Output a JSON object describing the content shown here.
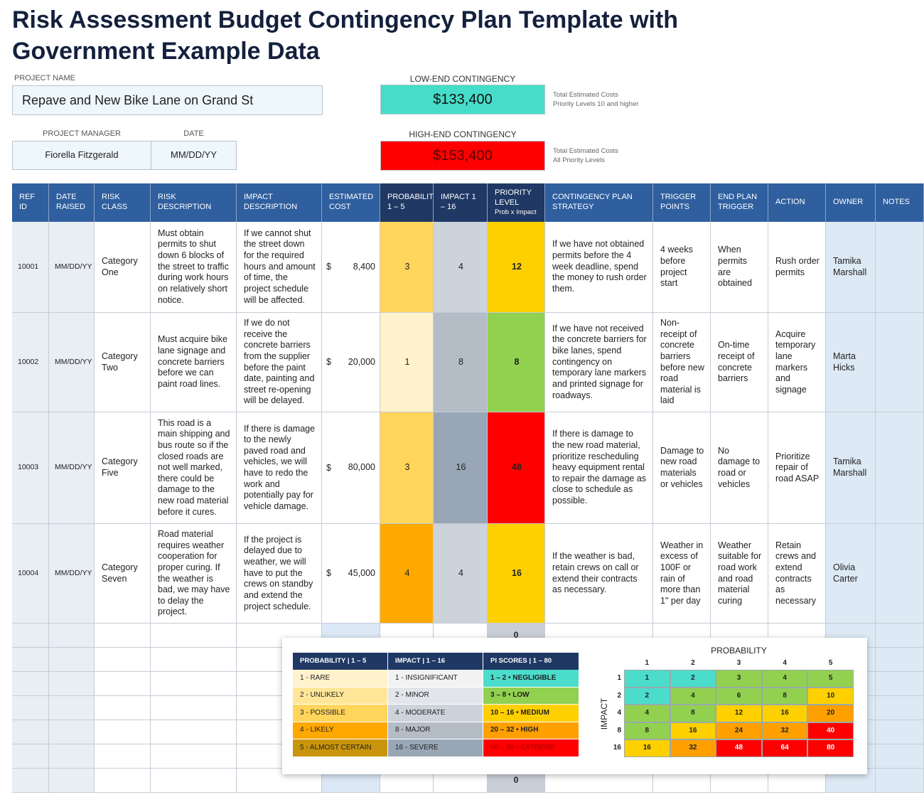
{
  "title": "Risk Assessment Budget Contingency Plan Template with Government Example Data",
  "project": {
    "name_label": "PROJECT NAME",
    "name": "Repave and New Bike Lane on Grand St",
    "manager_label": "PROJECT MANAGER",
    "manager": "Fiorella Fitzgerald",
    "date_label": "DATE",
    "date": "MM/DD/YY"
  },
  "contingency": {
    "low": {
      "label": "LOW-END CONTINGENCY",
      "value": "$133,400",
      "note": [
        "Total Estimated Costs",
        "Priority Levels 10 and higher"
      ],
      "color": "#45ddc9"
    },
    "high": {
      "label": "HIGH-END CONTINGENCY",
      "value": "$153,400",
      "note": [
        "Total Estimated Costs",
        "All Priority Levels"
      ],
      "color": "#ff0000"
    }
  },
  "table": {
    "headers": [
      "REF ID",
      "DATE RAISED",
      "RISK CLASS",
      "RISK DESCRIPTION",
      "IMPACT DESCRIPTION",
      "ESTIMATED COST",
      "PROBABILITY 1 – 5",
      "IMPACT 1 – 16",
      "PRIORITY LEVEL",
      "CONTINGENCY PLAN STRATEGY",
      "TRIGGER POINTS",
      "END PLAN TRIGGER",
      "ACTION",
      "OWNER",
      "NOTES"
    ],
    "priority_header_note": "Prob x Impact",
    "currency": "$",
    "rows": [
      [
        "10001",
        "MM/DD/YY",
        "Category One",
        "Must obtain permits to shut down 6 blocks of the street to traffic during work hours on relatively short notice.",
        "If we cannot shut the street down for the required hours and amount of time, the project schedule will be affected.",
        "8,400",
        3,
        4,
        12,
        "If we have not obtained permits before the 4 week deadline, spend the money to rush order them.",
        "4 weeks before project start",
        "When permits are obtained",
        "Rush order permits",
        "Tamika Marshall"
      ],
      [
        "10002",
        "MM/DD/YY",
        "Category Two",
        "Must acquire bike lane signage and concrete barriers before we can paint road lines.",
        "If we do not receive the concrete barriers from the supplier before the paint date, painting and street re-opening will be delayed.",
        "20,000",
        1,
        8,
        8,
        "If we have not received the concrete barriers for bike lanes, spend contingency on temporary lane markers and printed signage for roadways.",
        "Non-receipt of concrete barriers before new road material is laid",
        "On-time receipt of concrete barriers",
        "Acquire temporary lane markers and signage",
        "Marta Hicks"
      ],
      [
        "10003",
        "MM/DD/YY",
        "Category Five",
        "This road is a main shipping and bus route so if the closed roads are not well marked, there could be damage to the new road material before it cures.",
        "If there is damage to the newly paved road and vehicles, we will have to redo the work and potentially pay for vehicle damage.",
        "80,000",
        3,
        16,
        48,
        "If there is damage to the new road material, prioritize rescheduling heavy equipment rental to repair the damage as close to schedule as possible.",
        "Damage to new road materials or vehicles",
        "No damage to road or vehicles",
        "Prioritize repair of road ASAP",
        "Tamika Marshall"
      ],
      [
        "10004",
        "MM/DD/YY",
        "Category Seven",
        "Road material requires weather cooperation for proper curing. If the weather is bad, we may have to delay the project.",
        "If the project is delayed due to weather, we will have to put the crews on standby and extend the project schedule.",
        "45,000",
        4,
        4,
        16,
        "If the weather is bad, retain crews on call or extend their contracts as necessary.",
        "Weather in excess of 100F or rain of more than 1\" per day",
        "Weather suitable for road work and road material curing",
        "Retain crews and extend contracts as necessary",
        "Olivia Carter"
      ]
    ],
    "blank_priority": 0
  },
  "legend": {
    "columns": [
      {
        "header": "PROBABILITY | 1 – 5",
        "items": [
          {
            "label": "1 - RARE",
            "color": "#fff2cc"
          },
          {
            "label": "2 - UNLIKELY",
            "color": "#ffe699"
          },
          {
            "label": "3 - POSSIBLE",
            "color": "#ffd55c"
          },
          {
            "label": "4 - LIKELY",
            "color": "#ffa800"
          },
          {
            "label": "5 - ALMOST CERTAIN",
            "color": "#c9950c"
          }
        ]
      },
      {
        "header": "IMPACT | 1 – 16",
        "items": [
          {
            "label": "1 - INSIGNIFICANT",
            "color": "#f2f2f2"
          },
          {
            "label": "2 - MINOR",
            "color": "#e2e5ea"
          },
          {
            "label": "4 - MODERATE",
            "color": "#cdd3db"
          },
          {
            "label": "8 - MAJOR",
            "color": "#b4bcc6"
          },
          {
            "label": "16 - SEVERE",
            "color": "#98a6b6"
          }
        ]
      },
      {
        "header": "PI SCORES | 1 – 80",
        "items": [
          {
            "label": "1 – 2 • NEGLIGIBLE",
            "color": "#4bdccb"
          },
          {
            "label": "3 – 8 • LOW",
            "color": "#92d050"
          },
          {
            "label": "10 – 16 • MEDIUM",
            "color": "#ffd000"
          },
          {
            "label": "20 – 32 • HIGH",
            "color": "#ffa000"
          },
          {
            "label": "40 – 80 • EXTREME",
            "color": "#ff0000"
          }
        ]
      }
    ]
  },
  "matrix": {
    "title": "PROBABILITY",
    "axis_label": "IMPACT",
    "column_heads": [
      1,
      2,
      3,
      4,
      5
    ],
    "row_heads": [
      1,
      2,
      4,
      8,
      16
    ],
    "values": [
      [
        1,
        2,
        3,
        4,
        5
      ],
      [
        2,
        4,
        6,
        8,
        10
      ],
      [
        4,
        8,
        12,
        16,
        20
      ],
      [
        8,
        16,
        24,
        32,
        40
      ],
      [
        16,
        32,
        48,
        64,
        80
      ]
    ],
    "colors": [
      [
        "#4bdccb",
        "#4bdccb",
        "#92d050",
        "#92d050",
        "#92d050"
      ],
      [
        "#4bdccb",
        "#92d050",
        "#92d050",
        "#92d050",
        "#ffd000"
      ],
      [
        "#92d050",
        "#92d050",
        "#ffd000",
        "#ffd000",
        "#ffa000"
      ],
      [
        "#92d050",
        "#ffd000",
        "#ffa000",
        "#ffa000",
        "#ff0000"
      ],
      [
        "#ffd000",
        "#ffa000",
        "#ff0000",
        "#ff0000",
        "#ff0000"
      ]
    ]
  }
}
